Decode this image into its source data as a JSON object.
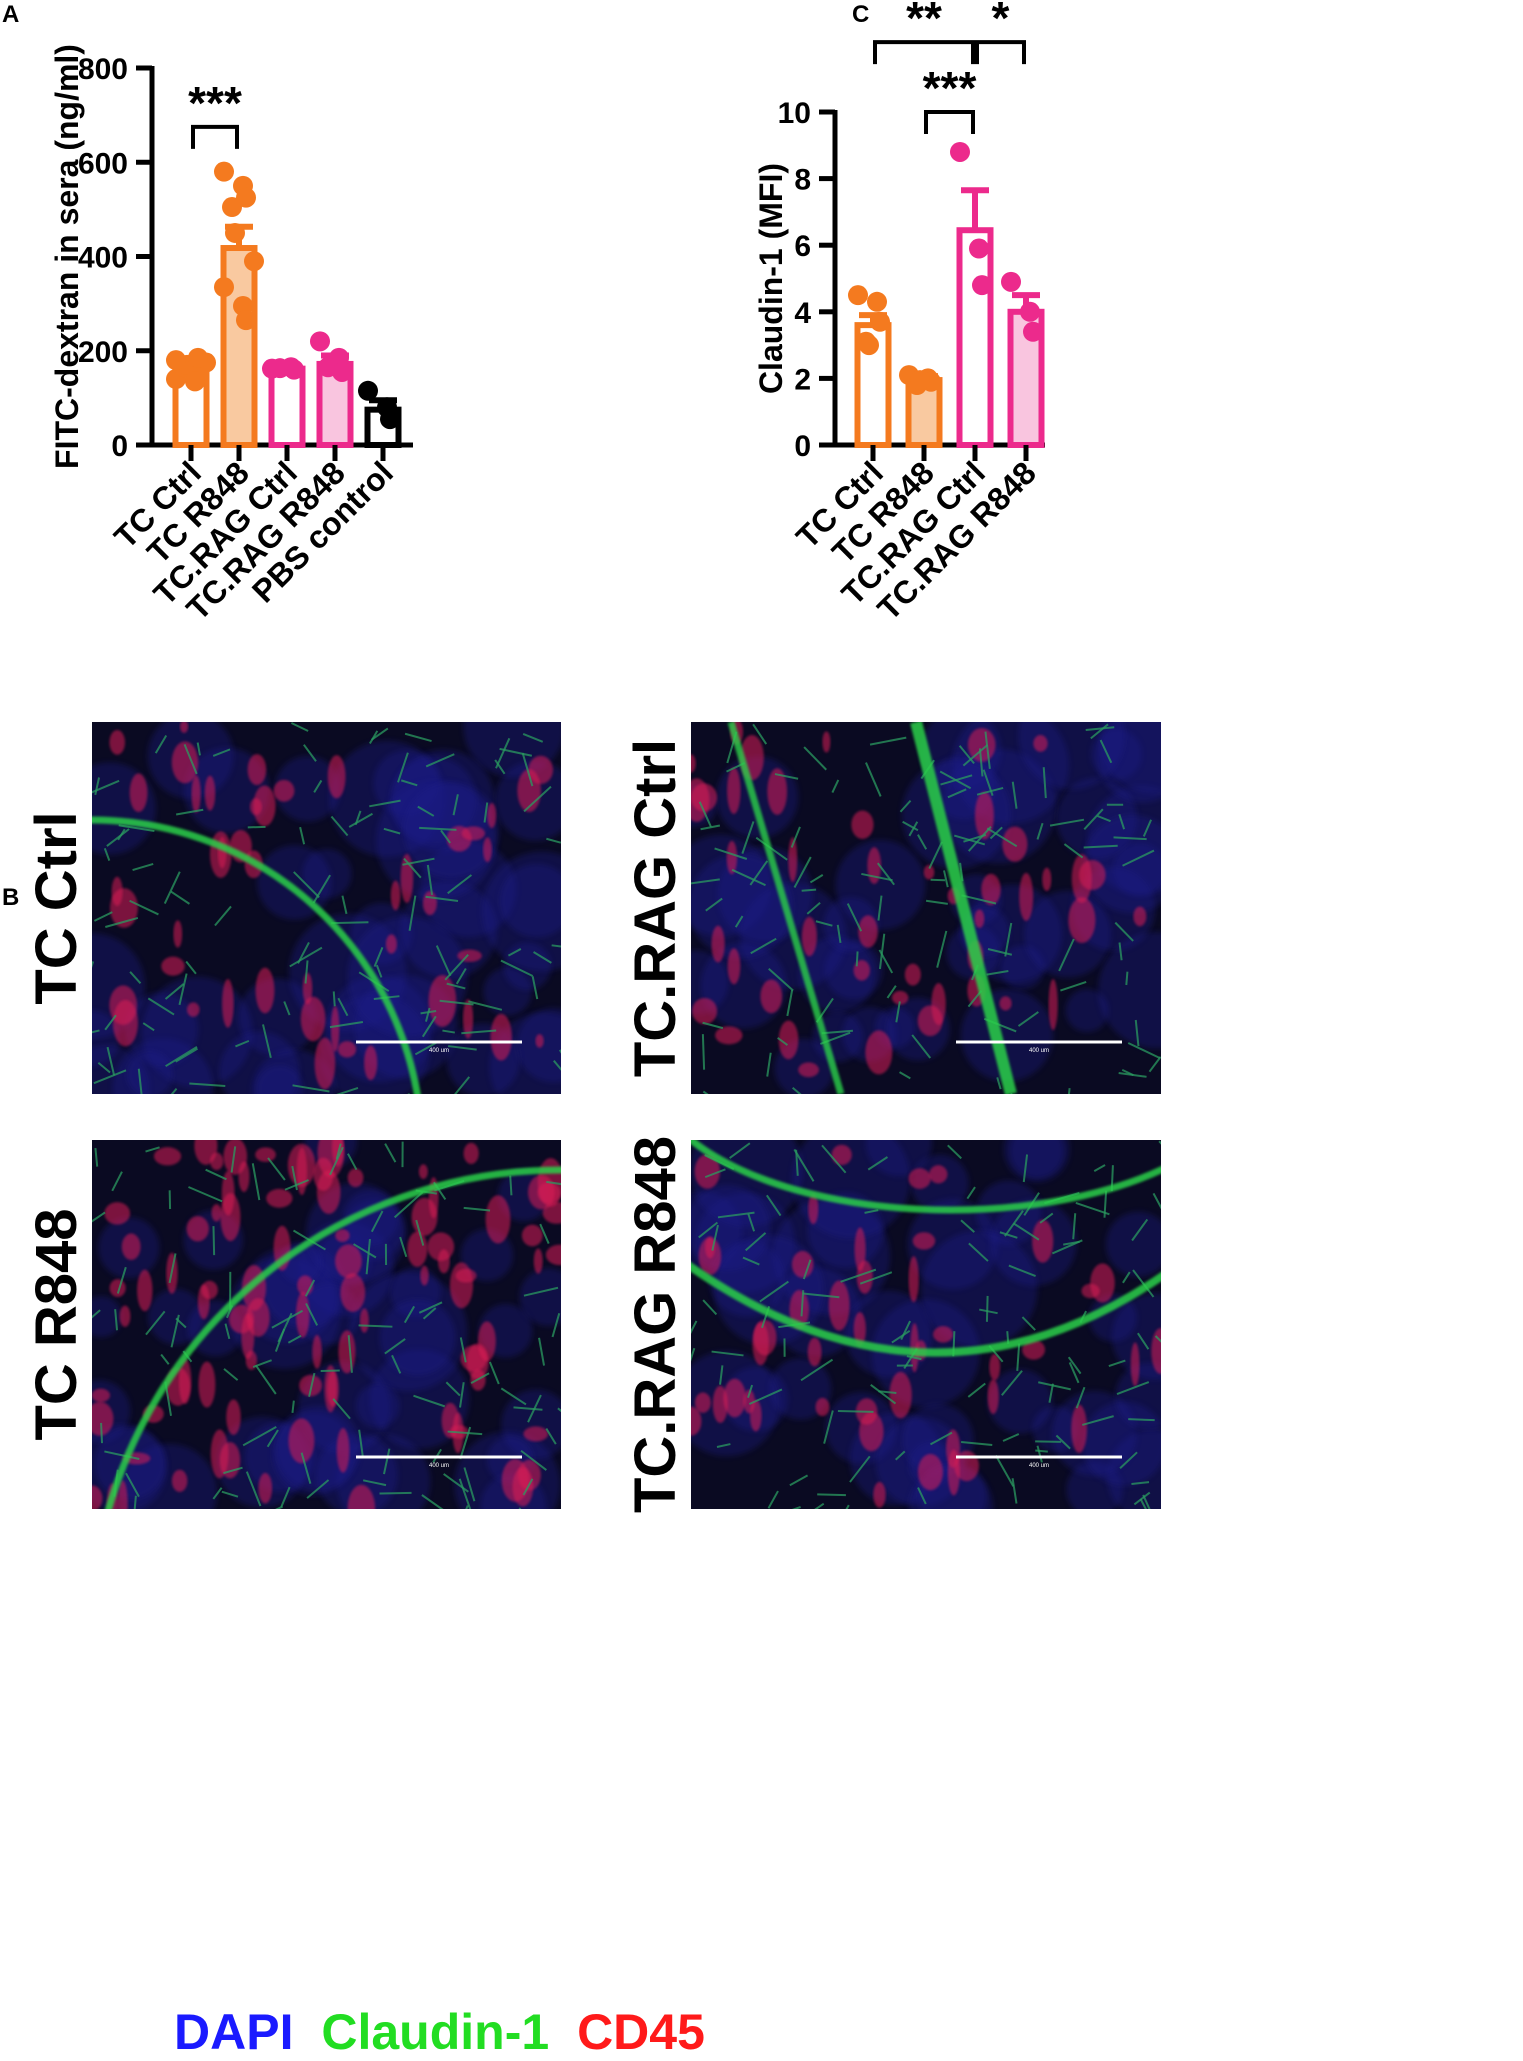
{
  "panels": {
    "a": "A",
    "b": "B",
    "c": "C"
  },
  "colors": {
    "orange": "#f47a1f",
    "orange_fill": "#f9c9a0",
    "pink": "#ec2a8c",
    "pink_fill": "#f9c5df",
    "black": "#000000",
    "dapi": "#1a1aff",
    "claudin": "#22dd22",
    "cd45": "#ff1a1a"
  },
  "chart_data": [
    {
      "id": "A",
      "type": "bar",
      "title": "",
      "xlabel": "",
      "ylabel": "FITC-dextran in sera (ng/ml)",
      "ylim": [
        0,
        800
      ],
      "yticks": [
        0,
        200,
        400,
        600,
        800
      ],
      "categories": [
        "TC Ctrl",
        "TC R848",
        "TC.RAG Ctrl",
        "TC.RAG R848",
        "PBS control"
      ],
      "values": [
        158,
        418,
        162,
        172,
        75
      ],
      "errors": [
        12,
        45,
        3,
        18,
        20
      ],
      "points": [
        [
          140,
          150,
          160,
          165,
          170,
          175,
          180,
          135,
          185
        ],
        [
          580,
          550,
          525,
          505,
          450,
          390,
          335,
          295,
          265
        ],
        [
          162,
          165,
          160,
          163
        ],
        [
          220,
          185,
          155,
          165
        ],
        [
          115,
          80,
          55
        ]
      ],
      "bar_style": [
        "orange-outline",
        "orange-filled",
        "pink-outline",
        "pink-filled",
        "black-outline"
      ],
      "grid": false,
      "significance": [
        {
          "from": 0,
          "to": 1,
          "label": "***",
          "y": 675
        }
      ]
    },
    {
      "id": "C",
      "type": "bar",
      "title": "",
      "xlabel": "",
      "ylabel": "Claudin-1 (MFI)",
      "ylim": [
        0,
        10
      ],
      "yticks": [
        0,
        2,
        4,
        6,
        8,
        10
      ],
      "categories": [
        "TC Ctrl",
        "TC R848",
        "TC.RAG Ctrl",
        "TC.RAG R848"
      ],
      "values": [
        3.6,
        1.95,
        6.45,
        4.0
      ],
      "errors": [
        0.3,
        0.12,
        1.2,
        0.5
      ],
      "points": [
        [
          4.5,
          4.3,
          3.7,
          3.1,
          3.0
        ],
        [
          2.1,
          2.0,
          1.9,
          1.8,
          1.95
        ],
        [
          8.8,
          5.9,
          4.8
        ],
        [
          4.9,
          4.0,
          3.4
        ]
      ],
      "bar_style": [
        "orange-outline",
        "orange-filled",
        "pink-outline",
        "pink-filled"
      ],
      "grid": false,
      "significance": [
        {
          "from": 0,
          "to": 2,
          "label": "**",
          "y": 12.1
        },
        {
          "from": 2,
          "to": 3,
          "label": "*",
          "y": 12.1
        },
        {
          "from": 1,
          "to": 2,
          "label": "***",
          "y": 10.0
        }
      ]
    }
  ],
  "micrographs": [
    {
      "label": "TC Ctrl",
      "scale": "400 um"
    },
    {
      "label": "TC.RAG Ctrl",
      "scale": "400 um"
    },
    {
      "label": "TC R848",
      "scale": "400 um"
    },
    {
      "label": "TC.RAG R848",
      "scale": "400 um"
    }
  ],
  "legend": {
    "dapi": "DAPI",
    "claudin": "Claudin-1",
    "cd45": "CD45"
  }
}
